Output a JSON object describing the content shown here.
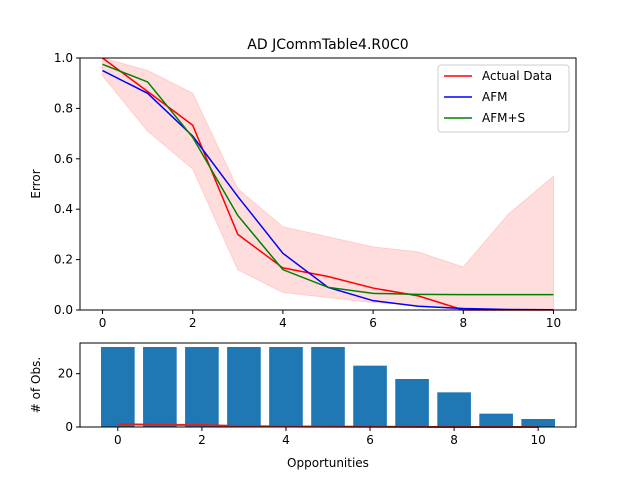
{
  "chart_data": [
    {
      "type": "line",
      "title": "AD JCommTable4.R0C0",
      "xlabel": "",
      "ylabel": "Error",
      "xlim": [
        -0.5,
        10.5
      ],
      "ylim": [
        0.0,
        1.0
      ],
      "xticks": [
        0,
        2,
        4,
        6,
        8,
        10
      ],
      "yticks": [
        0.0,
        0.2,
        0.4,
        0.6,
        0.8,
        1.0
      ],
      "xtick_labels": [
        "0",
        "2",
        "4",
        "6",
        "8",
        "10"
      ],
      "ytick_labels": [
        "0.0",
        "0.2",
        "0.4",
        "0.6",
        "0.8",
        "1.0"
      ],
      "grid": false,
      "legend": "top-right",
      "x": [
        0,
        1,
        2,
        3,
        4,
        5,
        6,
        7,
        8,
        9,
        10
      ],
      "band": {
        "color": "#ffdddd",
        "lower": [
          0.93,
          0.71,
          0.56,
          0.16,
          0.07,
          0.05,
          0.03,
          0.02,
          0.0,
          0.0,
          0.0
        ],
        "upper": [
          1.0,
          0.95,
          0.86,
          0.48,
          0.33,
          0.29,
          0.25,
          0.23,
          0.17,
          0.38,
          0.53
        ]
      },
      "series": [
        {
          "name": "Actual Data",
          "color": "#ff0000",
          "values": [
            1.0,
            0.867,
            0.733,
            0.3,
            0.167,
            0.133,
            0.087,
            0.056,
            0.0,
            0.0,
            0.0
          ]
        },
        {
          "name": "AFM",
          "color": "#0000ff",
          "values": [
            0.95,
            0.86,
            0.69,
            0.45,
            0.225,
            0.09,
            0.037,
            0.015,
            0.006,
            0.002,
            0.001
          ]
        },
        {
          "name": "AFM+S",
          "color": "#008000",
          "values": [
            0.975,
            0.905,
            0.685,
            0.375,
            0.16,
            0.09,
            0.066,
            0.062,
            0.061,
            0.061,
            0.061
          ]
        }
      ]
    },
    {
      "type": "bar",
      "xlabel": "Opportunities",
      "ylabel": "# of Obs.",
      "xlim": [
        -0.9,
        10.9
      ],
      "ylim": [
        0,
        31.5
      ],
      "xticks": [
        0,
        2,
        4,
        6,
        8,
        10
      ],
      "yticks": [
        0,
        20
      ],
      "xtick_labels": [
        "0",
        "2",
        "4",
        "6",
        "8",
        "10"
      ],
      "ytick_labels": [
        "0",
        "20"
      ],
      "categories": [
        0,
        1,
        2,
        3,
        4,
        5,
        6,
        7,
        8,
        9,
        10
      ],
      "values": [
        30,
        30,
        30,
        30,
        30,
        30,
        23,
        18,
        13,
        5,
        3
      ],
      "bar_color": "#1f77b4",
      "overlay_line": {
        "color": "#d62728",
        "values": [
          1.0,
          0.867,
          0.733,
          0.3,
          0.167,
          0.133,
          0.087,
          0.056,
          0.0,
          0.0,
          0.0
        ]
      }
    }
  ]
}
